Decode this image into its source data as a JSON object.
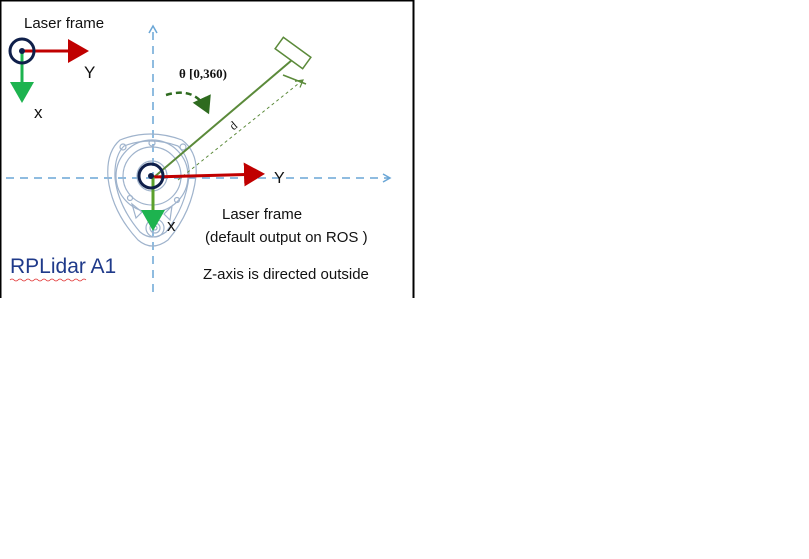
{
  "diagram": {
    "device_name": "RPLidar A1",
    "top_left_frame": {
      "title": "Laser frame",
      "y_axis_label": "Y",
      "x_axis_label": "x"
    },
    "center_frame": {
      "title": "Laser frame",
      "subtitle": "(default output on ROS )",
      "y_axis_label": "Y",
      "x_axis_label": "x"
    },
    "angle_label": "θ [0,360)",
    "distance_label": "d",
    "z_axis_note": "Z-axis is directed outside"
  },
  "colors": {
    "frame_border": "#000000",
    "y_axis_arrow": "#c00000",
    "x_axis_arrow": "#1db34f",
    "origin_ring": "#0f1f4a",
    "dashed_axes": "#6aa6d6",
    "ray": "#5b8a3a",
    "angle_arc": "#2e6b1f",
    "device_outline": "#9fb3cc",
    "device_name": "#1f3a8a"
  }
}
